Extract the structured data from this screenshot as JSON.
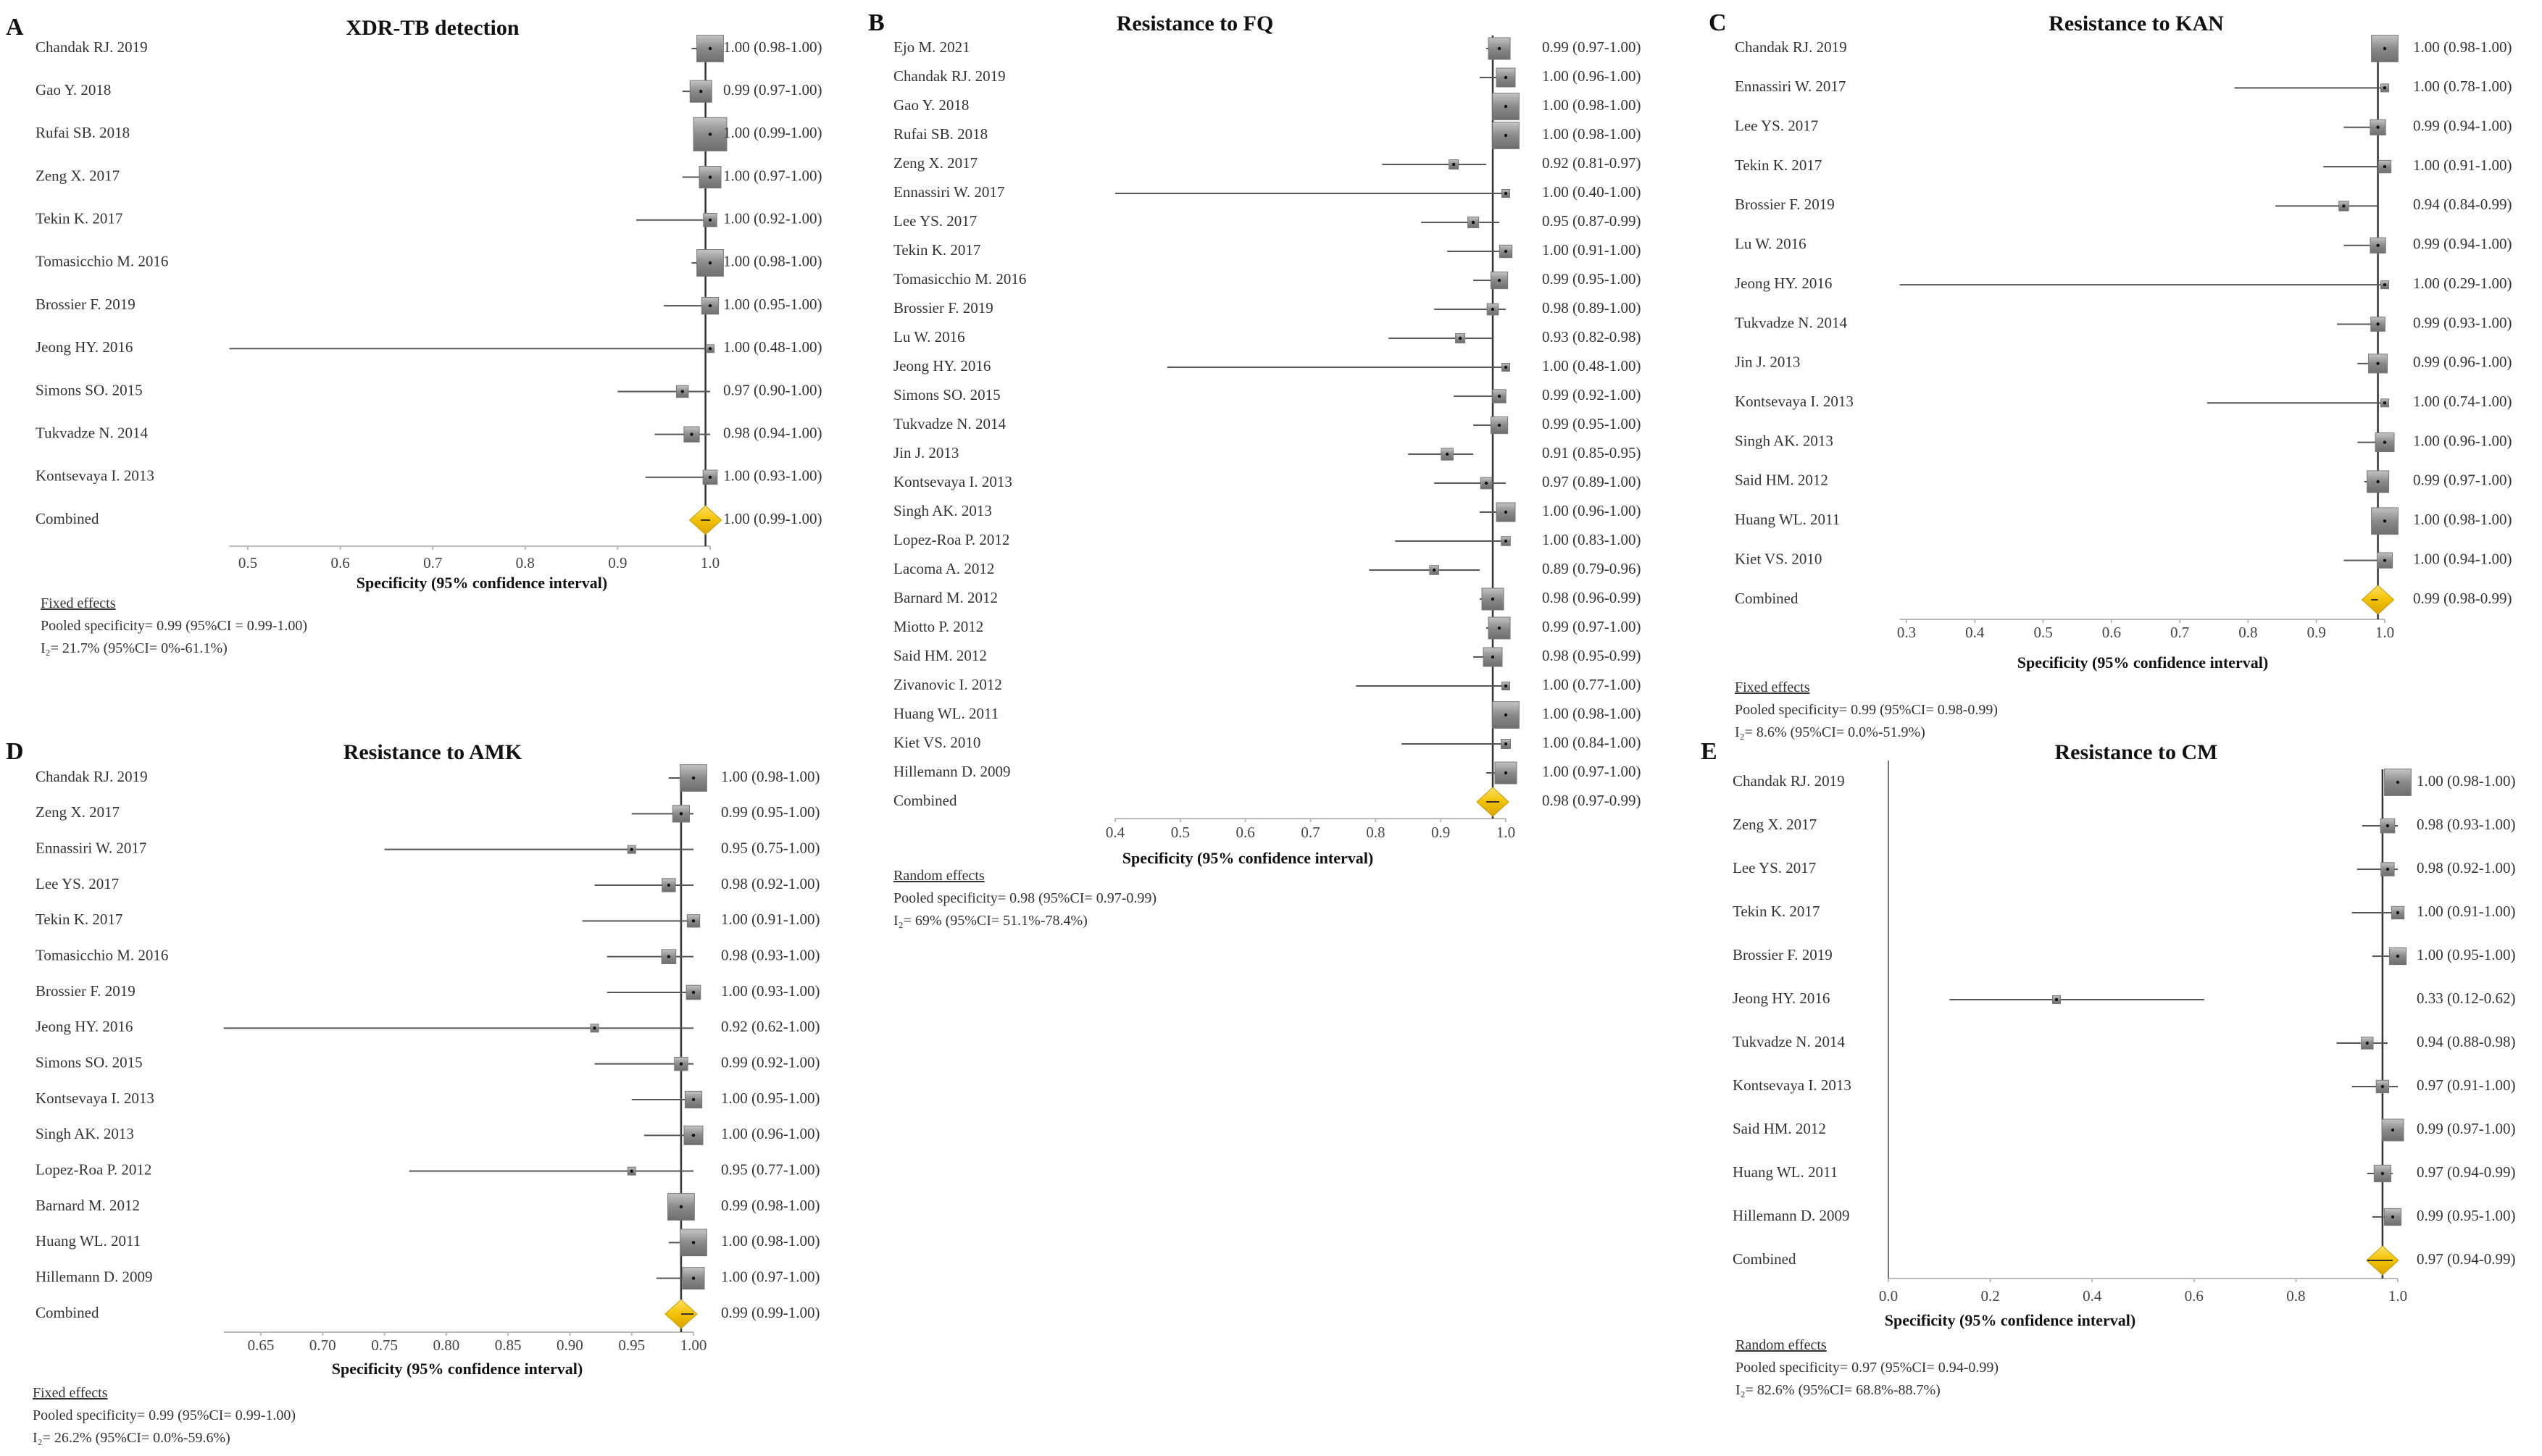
{
  "chart_data": [
    {
      "type": "forest",
      "panel": "A",
      "title": "XDR-TB detection",
      "xlabel": "Specificity (95% confidence interval)",
      "xlim": [
        0.48,
        1.0
      ],
      "ticks": [
        "0.5",
        "0.6",
        "0.7",
        "0.8",
        "0.9",
        "1.0"
      ],
      "tick_values": [
        0.5,
        0.6,
        0.7,
        0.8,
        0.9,
        1.0
      ],
      "studies": [
        {
          "study": "Chandak RJ. 2019",
          "est": 1.0,
          "lo": 0.98,
          "hi": 1.0,
          "text": "1.00 (0.98-1.00)"
        },
        {
          "study": "Gao Y. 2018",
          "est": 0.99,
          "lo": 0.97,
          "hi": 1.0,
          "text": "0.99 (0.97-1.00)"
        },
        {
          "study": "Rufai SB. 2018",
          "est": 1.0,
          "lo": 0.99,
          "hi": 1.0,
          "text": "1.00 (0.99-1.00)"
        },
        {
          "study": "Zeng X. 2017",
          "est": 1.0,
          "lo": 0.97,
          "hi": 1.0,
          "text": "1.00 (0.97-1.00)"
        },
        {
          "study": "Tekin K. 2017",
          "est": 1.0,
          "lo": 0.92,
          "hi": 1.0,
          "text": "1.00 (0.92-1.00)"
        },
        {
          "study": "Tomasicchio M. 2016",
          "est": 1.0,
          "lo": 0.98,
          "hi": 1.0,
          "text": "1.00 (0.98-1.00)"
        },
        {
          "study": "Brossier F. 2019",
          "est": 1.0,
          "lo": 0.95,
          "hi": 1.0,
          "text": "1.00 (0.95-1.00)"
        },
        {
          "study": "Jeong HY. 2016",
          "est": 1.0,
          "lo": 0.48,
          "hi": 1.0,
          "text": "1.00 (0.48-1.00)"
        },
        {
          "study": "Simons SO. 2015",
          "est": 0.97,
          "lo": 0.9,
          "hi": 1.0,
          "text": "0.97 (0.90-1.00)"
        },
        {
          "study": "Tukvadze N. 2014",
          "est": 0.98,
          "lo": 0.94,
          "hi": 1.0,
          "text": "0.98 (0.94-1.00)"
        },
        {
          "study": "Kontsevaya I. 2013",
          "est": 1.0,
          "lo": 0.93,
          "hi": 1.0,
          "text": "1.00 (0.93-1.00)"
        }
      ],
      "combined": {
        "label": "Combined",
        "est": 0.995,
        "lo": 0.99,
        "hi": 1.0,
        "text": "1.00 (0.99-1.00)"
      },
      "footnote": {
        "model": "Fixed effects",
        "pooled": "Pooled specificity= 0.99 (95%CI = 0.99-1.00)",
        "i2": "I₂= 21.7% (95%CI= 0%-61.1%)"
      }
    },
    {
      "type": "forest",
      "panel": "B",
      "title": "Resistance to FQ",
      "xlabel": "Specificity (95% confidence interval)",
      "xlim": [
        0.4,
        1.0
      ],
      "ticks": [
        "0.4",
        "0.5",
        "0.6",
        "0.7",
        "0.8",
        "0.9",
        "1.0"
      ],
      "tick_values": [
        0.4,
        0.5,
        0.6,
        0.7,
        0.8,
        0.9,
        1.0
      ],
      "studies": [
        {
          "study": "Ejo M. 2021",
          "est": 0.99,
          "lo": 0.97,
          "hi": 1.0,
          "text": "0.99 (0.97-1.00)"
        },
        {
          "study": "Chandak RJ. 2019",
          "est": 1.0,
          "lo": 0.96,
          "hi": 1.0,
          "text": "1.00 (0.96-1.00)"
        },
        {
          "study": "Gao Y. 2018",
          "est": 1.0,
          "lo": 0.98,
          "hi": 1.0,
          "text": "1.00 (0.98-1.00)"
        },
        {
          "study": "Rufai SB. 2018",
          "est": 1.0,
          "lo": 0.98,
          "hi": 1.0,
          "text": "1.00 (0.98-1.00)"
        },
        {
          "study": "Zeng X. 2017",
          "est": 0.92,
          "lo": 0.81,
          "hi": 0.97,
          "text": "0.92 (0.81-0.97)"
        },
        {
          "study": "Ennassiri W. 2017",
          "est": 1.0,
          "lo": 0.4,
          "hi": 1.0,
          "text": "1.00 (0.40-1.00)"
        },
        {
          "study": "Lee YS. 2017",
          "est": 0.95,
          "lo": 0.87,
          "hi": 0.99,
          "text": "0.95 (0.87-0.99)"
        },
        {
          "study": "Tekin K. 2017",
          "est": 1.0,
          "lo": 0.91,
          "hi": 1.0,
          "text": "1.00 (0.91-1.00)"
        },
        {
          "study": "Tomasicchio M. 2016",
          "est": 0.99,
          "lo": 0.95,
          "hi": 1.0,
          "text": "0.99 (0.95-1.00)"
        },
        {
          "study": "Brossier F. 2019",
          "est": 0.98,
          "lo": 0.89,
          "hi": 1.0,
          "text": "0.98 (0.89-1.00)"
        },
        {
          "study": "Lu W. 2016",
          "est": 0.93,
          "lo": 0.82,
          "hi": 0.98,
          "text": "0.93 (0.82-0.98)"
        },
        {
          "study": "Jeong HY. 2016",
          "est": 1.0,
          "lo": 0.48,
          "hi": 1.0,
          "text": "1.00 (0.48-1.00)"
        },
        {
          "study": "Simons SO. 2015",
          "est": 0.99,
          "lo": 0.92,
          "hi": 1.0,
          "text": "0.99 (0.92-1.00)"
        },
        {
          "study": "Tukvadze N. 2014",
          "est": 0.99,
          "lo": 0.95,
          "hi": 1.0,
          "text": "0.99 (0.95-1.00)"
        },
        {
          "study": "Jin J. 2013",
          "est": 0.91,
          "lo": 0.85,
          "hi": 0.95,
          "text": "0.91 (0.85-0.95)"
        },
        {
          "study": "Kontsevaya I. 2013",
          "est": 0.97,
          "lo": 0.89,
          "hi": 1.0,
          "text": "0.97 (0.89-1.00)"
        },
        {
          "study": "Singh AK. 2013",
          "est": 1.0,
          "lo": 0.96,
          "hi": 1.0,
          "text": "1.00 (0.96-1.00)"
        },
        {
          "study": "Lopez-Roa P. 2012",
          "est": 1.0,
          "lo": 0.83,
          "hi": 1.0,
          "text": "1.00 (0.83-1.00)"
        },
        {
          "study": "Lacoma A. 2012",
          "est": 0.89,
          "lo": 0.79,
          "hi": 0.96,
          "text": "0.89 (0.79-0.96)"
        },
        {
          "study": "Barnard M. 2012",
          "est": 0.98,
          "lo": 0.96,
          "hi": 0.99,
          "text": "0.98 (0.96-0.99)"
        },
        {
          "study": "Miotto P. 2012",
          "est": 0.99,
          "lo": 0.97,
          "hi": 1.0,
          "text": "0.99 (0.97-1.00)"
        },
        {
          "study": "Said HM. 2012",
          "est": 0.98,
          "lo": 0.95,
          "hi": 0.99,
          "text": "0.98 (0.95-0.99)"
        },
        {
          "study": "Zivanovic I. 2012",
          "est": 1.0,
          "lo": 0.77,
          "hi": 1.0,
          "text": "1.00 (0.77-1.00)"
        },
        {
          "study": "Huang WL. 2011",
          "est": 1.0,
          "lo": 0.98,
          "hi": 1.0,
          "text": "1.00 (0.98-1.00)"
        },
        {
          "study": "Kiet VS. 2010",
          "est": 1.0,
          "lo": 0.84,
          "hi": 1.0,
          "text": "1.00 (0.84-1.00)"
        },
        {
          "study": "Hillemann D. 2009",
          "est": 1.0,
          "lo": 0.97,
          "hi": 1.0,
          "text": "1.00 (0.97-1.00)"
        }
      ],
      "combined": {
        "label": "Combined",
        "est": 0.98,
        "lo": 0.97,
        "hi": 0.99,
        "text": "0.98 (0.97-0.99)"
      },
      "footnote": {
        "model": "Random effects",
        "pooled": "Pooled specificity= 0.98 (95%CI= 0.97-0.99)",
        "i2": "I₂= 69% (95%CI= 51.1%-78.4%)"
      }
    },
    {
      "type": "forest",
      "panel": "C",
      "title": "Resistance to KAN",
      "xlabel": "Specificity (95% confidence interval)",
      "xlim": [
        0.29,
        1.0
      ],
      "ticks": [
        "0.3",
        "0.4",
        "0.5",
        "0.6",
        "0.7",
        "0.8",
        "0.9",
        "1.0"
      ],
      "tick_values": [
        0.3,
        0.4,
        0.5,
        0.6,
        0.7,
        0.8,
        0.9,
        1.0
      ],
      "studies": [
        {
          "study": "Chandak RJ. 2019",
          "est": 1.0,
          "lo": 0.98,
          "hi": 1.0,
          "text": "1.00 (0.98-1.00)"
        },
        {
          "study": "Ennassiri W. 2017",
          "est": 1.0,
          "lo": 0.78,
          "hi": 1.0,
          "text": "1.00 (0.78-1.00)"
        },
        {
          "study": "Lee YS. 2017",
          "est": 0.99,
          "lo": 0.94,
          "hi": 1.0,
          "text": "0.99 (0.94-1.00)"
        },
        {
          "study": "Tekin K. 2017",
          "est": 1.0,
          "lo": 0.91,
          "hi": 1.0,
          "text": "1.00 (0.91-1.00)"
        },
        {
          "study": "Brossier F. 2019",
          "est": 0.94,
          "lo": 0.84,
          "hi": 0.99,
          "text": "0.94 (0.84-0.99)"
        },
        {
          "study": "Lu W. 2016",
          "est": 0.99,
          "lo": 0.94,
          "hi": 1.0,
          "text": "0.99 (0.94-1.00)"
        },
        {
          "study": "Jeong HY. 2016",
          "est": 1.0,
          "lo": 0.29,
          "hi": 1.0,
          "text": "1.00 (0.29-1.00)"
        },
        {
          "study": "Tukvadze N. 2014",
          "est": 0.99,
          "lo": 0.93,
          "hi": 1.0,
          "text": "0.99 (0.93-1.00)"
        },
        {
          "study": "Jin J. 2013",
          "est": 0.99,
          "lo": 0.96,
          "hi": 1.0,
          "text": "0.99 (0.96-1.00)"
        },
        {
          "study": "Kontsevaya I. 2013",
          "est": 1.0,
          "lo": 0.74,
          "hi": 1.0,
          "text": "1.00 (0.74-1.00)"
        },
        {
          "study": "Singh AK. 2013",
          "est": 1.0,
          "lo": 0.96,
          "hi": 1.0,
          "text": "1.00 (0.96-1.00)"
        },
        {
          "study": "Said HM. 2012",
          "est": 0.99,
          "lo": 0.97,
          "hi": 1.0,
          "text": "0.99 (0.97-1.00)"
        },
        {
          "study": "Huang WL. 2011",
          "est": 1.0,
          "lo": 0.98,
          "hi": 1.0,
          "text": "1.00 (0.98-1.00)"
        },
        {
          "study": "Kiet VS. 2010",
          "est": 1.0,
          "lo": 0.94,
          "hi": 1.0,
          "text": "1.00 (0.94-1.00)"
        }
      ],
      "combined": {
        "label": "Combined",
        "est": 0.99,
        "lo": 0.98,
        "hi": 0.99,
        "text": "0.99 (0.98-0.99)"
      },
      "footnote": {
        "model": "Fixed effects",
        "pooled": "Pooled specificity= 0.99 (95%CI= 0.98-0.99)",
        "i2": "I₂= 8.6% (95%CI= 0.0%-51.9%)"
      }
    },
    {
      "type": "forest",
      "panel": "D",
      "title": "Resistance to AMK",
      "xlabel": "Specificity (95% confidence interval)",
      "xlim": [
        0.62,
        1.0
      ],
      "ticks": [
        "0.65",
        "0.70",
        "0.75",
        "0.80",
        "0.85",
        "0.90",
        "0.95",
        "1.00"
      ],
      "tick_values": [
        0.65,
        0.7,
        0.75,
        0.8,
        0.85,
        0.9,
        0.95,
        1.0
      ],
      "studies": [
        {
          "study": "Chandak RJ. 2019",
          "est": 1.0,
          "lo": 0.98,
          "hi": 1.0,
          "text": "1.00 (0.98-1.00)"
        },
        {
          "study": "Zeng X. 2017",
          "est": 0.99,
          "lo": 0.95,
          "hi": 1.0,
          "text": "0.99 (0.95-1.00)"
        },
        {
          "study": "Ennassiri W. 2017",
          "est": 0.95,
          "lo": 0.75,
          "hi": 1.0,
          "text": "0.95 (0.75-1.00)"
        },
        {
          "study": "Lee YS. 2017",
          "est": 0.98,
          "lo": 0.92,
          "hi": 1.0,
          "text": "0.98 (0.92-1.00)"
        },
        {
          "study": "Tekin K. 2017",
          "est": 1.0,
          "lo": 0.91,
          "hi": 1.0,
          "text": "1.00 (0.91-1.00)"
        },
        {
          "study": "Tomasicchio M. 2016",
          "est": 0.98,
          "lo": 0.93,
          "hi": 1.0,
          "text": "0.98 (0.93-1.00)"
        },
        {
          "study": "Brossier F. 2019",
          "est": 1.0,
          "lo": 0.93,
          "hi": 1.0,
          "text": "1.00 (0.93-1.00)"
        },
        {
          "study": "Jeong HY. 2016",
          "est": 0.92,
          "lo": 0.62,
          "hi": 1.0,
          "text": "0.92 (0.62-1.00)"
        },
        {
          "study": "Simons SO. 2015",
          "est": 0.99,
          "lo": 0.92,
          "hi": 1.0,
          "text": "0.99 (0.92-1.00)"
        },
        {
          "study": "Kontsevaya I. 2013",
          "est": 1.0,
          "lo": 0.95,
          "hi": 1.0,
          "text": "1.00 (0.95-1.00)"
        },
        {
          "study": "Singh AK. 2013",
          "est": 1.0,
          "lo": 0.96,
          "hi": 1.0,
          "text": "1.00 (0.96-1.00)"
        },
        {
          "study": "Lopez-Roa P. 2012",
          "est": 0.95,
          "lo": 0.77,
          "hi": 1.0,
          "text": "0.95 (0.77-1.00)"
        },
        {
          "study": "Barnard M. 2012",
          "est": 0.99,
          "lo": 0.98,
          "hi": 1.0,
          "text": "0.99 (0.98-1.00)"
        },
        {
          "study": "Huang WL. 2011",
          "est": 1.0,
          "lo": 0.98,
          "hi": 1.0,
          "text": "1.00 (0.98-1.00)"
        },
        {
          "study": "Hillemann D. 2009",
          "est": 1.0,
          "lo": 0.97,
          "hi": 1.0,
          "text": "1.00 (0.97-1.00)"
        }
      ],
      "combined": {
        "label": "Combined",
        "est": 0.99,
        "lo": 0.99,
        "hi": 1.0,
        "text": "0.99 (0.99-1.00)"
      },
      "footnote": {
        "model": "Fixed effects",
        "pooled": "Pooled specificity= 0.99 (95%CI= 0.99-1.00)",
        "i2": "I₂= 26.2% (95%CI= 0.0%-59.6%)"
      }
    },
    {
      "type": "forest",
      "panel": "E",
      "title": "Resistance to CM",
      "xlabel": "Specificity (95% confidence interval)",
      "xlim": [
        0.0,
        1.0
      ],
      "ticks": [
        "0.0",
        "0.2",
        "0.4",
        "0.6",
        "0.8",
        "1.0"
      ],
      "tick_values": [
        0.0,
        0.2,
        0.4,
        0.6,
        0.8,
        1.0
      ],
      "studies": [
        {
          "study": "Chandak RJ. 2019",
          "est": 1.0,
          "lo": 0.98,
          "hi": 1.0,
          "text": "1.00 (0.98-1.00)"
        },
        {
          "study": "Zeng X. 2017",
          "est": 0.98,
          "lo": 0.93,
          "hi": 1.0,
          "text": "0.98 (0.93-1.00)"
        },
        {
          "study": "Lee YS. 2017",
          "est": 0.98,
          "lo": 0.92,
          "hi": 1.0,
          "text": "0.98 (0.92-1.00)"
        },
        {
          "study": "Tekin K. 2017",
          "est": 1.0,
          "lo": 0.91,
          "hi": 1.0,
          "text": "1.00 (0.91-1.00)"
        },
        {
          "study": "Brossier F. 2019",
          "est": 1.0,
          "lo": 0.95,
          "hi": 1.0,
          "text": "1.00 (0.95-1.00)"
        },
        {
          "study": "Jeong HY. 2016",
          "est": 0.33,
          "lo": 0.12,
          "hi": 0.62,
          "text": "0.33 (0.12-0.62)"
        },
        {
          "study": "Tukvadze N. 2014",
          "est": 0.94,
          "lo": 0.88,
          "hi": 0.98,
          "text": "0.94 (0.88-0.98)"
        },
        {
          "study": "Kontsevaya I. 2013",
          "est": 0.97,
          "lo": 0.91,
          "hi": 1.0,
          "text": "0.97 (0.91-1.00)"
        },
        {
          "study": "Said HM. 2012",
          "est": 0.99,
          "lo": 0.97,
          "hi": 1.0,
          "text": "0.99 (0.97-1.00)"
        },
        {
          "study": "Huang WL. 2011",
          "est": 0.97,
          "lo": 0.94,
          "hi": 0.99,
          "text": "0.97 (0.94-0.99)"
        },
        {
          "study": "Hillemann D. 2009",
          "est": 0.99,
          "lo": 0.95,
          "hi": 1.0,
          "text": "0.99 (0.95-1.00)"
        }
      ],
      "combined": {
        "label": "Combined",
        "est": 0.97,
        "lo": 0.94,
        "hi": 0.99,
        "text": "0.97 (0.94-0.99)"
      },
      "footnote": {
        "model": "Random effects",
        "pooled": "Pooled specificity= 0.97 (95%CI= 0.94-0.99)",
        "i2": "I₂= 82.6% (95%CI= 68.8%-88.7%)"
      }
    }
  ],
  "colors": {
    "study_box": "#8a8a8a",
    "ci_line": "#555555",
    "reference_line": "#333333",
    "combined_diamond": "#f2c200",
    "axis": "#bbbbbb"
  }
}
